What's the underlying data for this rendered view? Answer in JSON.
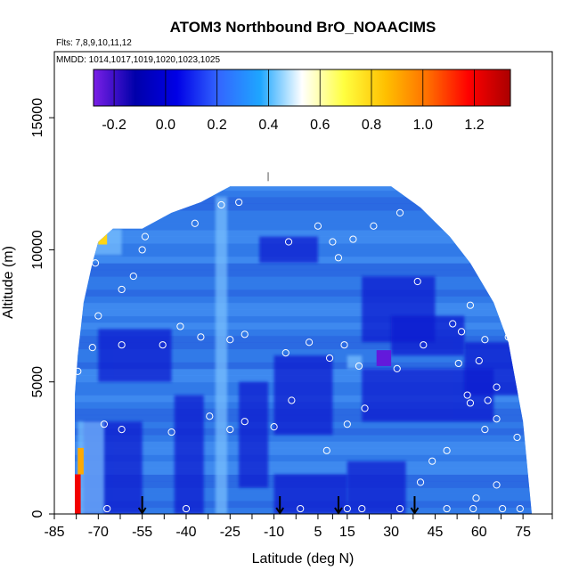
{
  "chart_data": {
    "type": "heatmap",
    "title": "ATOM3 Northbound BrO_NOAACIMS",
    "subtitle_flights": "Flts: 7,8,9,10,11,12",
    "subtitle_dates": "MMDD: 1014,1017,1019,1020,1023,1025",
    "xlabel": "Latitude (deg N)",
    "ylabel": "Altitude (m)",
    "xlim": [
      -85,
      85
    ],
    "ylim": [
      0,
      17500
    ],
    "x_ticks": [
      -85,
      -70,
      -55,
      -40,
      -25,
      -10,
      5,
      15,
      30,
      45,
      60,
      75
    ],
    "x_tick_labels": [
      "-85",
      "-70",
      "-55",
      "-40",
      "-25",
      "-10",
      "5",
      "15",
      "30",
      "45",
      "60",
      "75"
    ],
    "y_ticks": [
      0,
      5000,
      10000,
      15000
    ],
    "y_tick_labels": [
      "0",
      "5000",
      "10000",
      "15000"
    ],
    "colorbar": {
      "range": [
        -0.28,
        1.34
      ],
      "ticks": [
        -0.2,
        0.0,
        0.2,
        0.4,
        0.6,
        0.8,
        1.0,
        1.2
      ],
      "tick_labels": [
        "-0.2",
        "0.0",
        "0.2",
        "0.4",
        "0.6",
        "0.8",
        "1.0",
        "1.2"
      ],
      "colors": [
        "#7a1fe6",
        "#0000aa",
        "#0000e6",
        "#3366ff",
        "#1ea6ff",
        "#ffffff",
        "#ffff40",
        "#ffc000",
        "#ff7000",
        "#ff0000",
        "#aa0000"
      ]
    },
    "colors": {
      "background": "#2f7ae6",
      "dark": "#0a1fd0",
      "light": "#7cc2ff",
      "point_stroke": "#ffffff",
      "arrow": "#000000"
    },
    "coverage_envelope": {
      "lat": [
        -78,
        -77,
        -75,
        -72,
        -70,
        -65,
        -55,
        -45,
        -35,
        -25,
        -15,
        0,
        15,
        30,
        40,
        50,
        57,
        65,
        70,
        75,
        78
      ],
      "alt_top": [
        4500,
        6000,
        8000,
        9500,
        10300,
        10800,
        10800,
        11400,
        11800,
        12400,
        12400,
        12400,
        12400,
        12400,
        11600,
        10500,
        9500,
        8000,
        6500,
        3500,
        0
      ]
    },
    "dark_bands": [
      {
        "lat": [
          -75,
          -55
        ],
        "alt": [
          0,
          3500
        ]
      },
      {
        "lat": [
          -44,
          -34
        ],
        "alt": [
          0,
          4500
        ]
      },
      {
        "lat": [
          -22,
          -12
        ],
        "alt": [
          1000,
          5000
        ]
      },
      {
        "lat": [
          -10,
          10
        ],
        "alt": [
          3000,
          6000
        ]
      },
      {
        "lat": [
          20,
          45
        ],
        "alt": [
          6500,
          9000
        ]
      },
      {
        "lat": [
          -70,
          -45
        ],
        "alt": [
          5000,
          7000
        ]
      },
      {
        "lat": [
          -10,
          15
        ],
        "alt": [
          0,
          1500
        ]
      },
      {
        "lat": [
          15,
          35
        ],
        "alt": [
          0,
          2000
        ]
      },
      {
        "lat": [
          20,
          65
        ],
        "alt": [
          3500,
          5500
        ]
      },
      {
        "lat": [
          55,
          75
        ],
        "alt": [
          4500,
          6500
        ]
      },
      {
        "lat": [
          -15,
          5
        ],
        "alt": [
          9500,
          10500
        ]
      },
      {
        "lat": [
          30,
          55
        ],
        "alt": [
          6000,
          7500
        ]
      }
    ],
    "light_bands": [
      {
        "lat": [
          -30,
          -26
        ],
        "alt": [
          0,
          12000
        ]
      },
      {
        "lat": [
          -77,
          -68
        ],
        "alt": [
          0,
          3500
        ]
      },
      {
        "lat": [
          -72,
          -62
        ],
        "alt": [
          9800,
          10800
        ]
      },
      {
        "lat": [
          15,
          20
        ],
        "alt": [
          5500,
          6000
        ]
      }
    ],
    "hot_cells": [
      {
        "lat": [
          -78,
          -76
        ],
        "alt": [
          0,
          1500
        ],
        "value": 1.2
      },
      {
        "lat": [
          -77,
          -75
        ],
        "alt": [
          1500,
          2500
        ],
        "value": 0.9
      },
      {
        "lat": [
          -70,
          -67
        ],
        "alt": [
          10200,
          10700
        ],
        "value": 0.8
      }
    ],
    "purple_cells": [
      {
        "lat": [
          25,
          30
        ],
        "alt": [
          5600,
          6200
        ],
        "value": -0.25
      }
    ],
    "observation_points": [
      [
        -77,
        5400
      ],
      [
        -72,
        6300
      ],
      [
        -71,
        9500
      ],
      [
        -70,
        7500
      ],
      [
        -68,
        3400
      ],
      [
        -67,
        200
      ],
      [
        -62,
        3200
      ],
      [
        -62,
        6400
      ],
      [
        -62,
        8500
      ],
      [
        -58,
        9000
      ],
      [
        -55,
        10000
      ],
      [
        -54,
        10500
      ],
      [
        -48,
        6400
      ],
      [
        -45,
        3100
      ],
      [
        -42,
        7100
      ],
      [
        -40,
        200
      ],
      [
        -37,
        11000
      ],
      [
        -35,
        6700
      ],
      [
        -32,
        3700
      ],
      [
        -28,
        11700
      ],
      [
        -25,
        6600
      ],
      [
        -25,
        3200
      ],
      [
        -22,
        11800
      ],
      [
        -20,
        6800
      ],
      [
        -20,
        3500
      ],
      [
        -10,
        3300
      ],
      [
        -6,
        6100
      ],
      [
        -5,
        10300
      ],
      [
        -4,
        4300
      ],
      [
        -1,
        200
      ],
      [
        2,
        6500
      ],
      [
        5,
        10900
      ],
      [
        8,
        2400
      ],
      [
        9,
        5900
      ],
      [
        10,
        10300
      ],
      [
        12,
        9700
      ],
      [
        14,
        6400
      ],
      [
        15,
        3400
      ],
      [
        15,
        200
      ],
      [
        17,
        10400
      ],
      [
        19,
        5600
      ],
      [
        20,
        200
      ],
      [
        21,
        4000
      ],
      [
        24,
        10900
      ],
      [
        32,
        5500
      ],
      [
        33,
        11400
      ],
      [
        33,
        200
      ],
      [
        39,
        8800
      ],
      [
        40,
        1200
      ],
      [
        41,
        6400
      ],
      [
        44,
        2000
      ],
      [
        49,
        2400
      ],
      [
        49,
        200
      ],
      [
        51,
        7200
      ],
      [
        53,
        5700
      ],
      [
        54,
        6900
      ],
      [
        56,
        4500
      ],
      [
        57,
        7900
      ],
      [
        57,
        4200
      ],
      [
        58,
        200
      ],
      [
        59,
        600
      ],
      [
        60,
        5800
      ],
      [
        62,
        6600
      ],
      [
        62,
        3200
      ],
      [
        63,
        4300
      ],
      [
        66,
        4800
      ],
      [
        66,
        3600
      ],
      [
        66,
        1100
      ],
      [
        66,
        8500
      ],
      [
        68,
        200
      ],
      [
        70,
        6700
      ],
      [
        73,
        2900
      ],
      [
        74,
        200
      ]
    ],
    "arrows_lat": [
      -55,
      -8,
      12,
      38
    ],
    "top_marker": {
      "lat": -12,
      "alt": 12600
    }
  }
}
